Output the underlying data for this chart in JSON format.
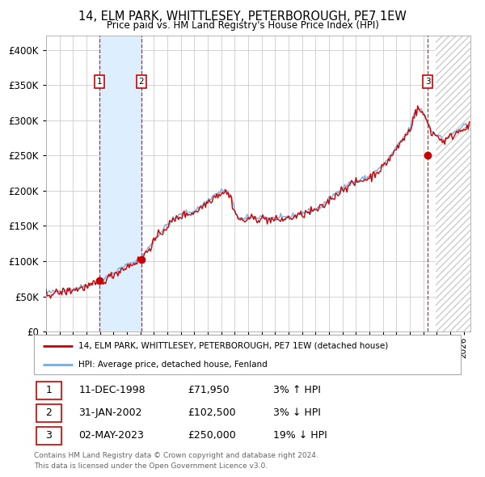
{
  "title": "14, ELM PARK, WHITTLESEY, PETERBOROUGH, PE7 1EW",
  "subtitle": "Price paid vs. HM Land Registry's House Price Index (HPI)",
  "legend_line1": "14, ELM PARK, WHITTLESEY, PETERBOROUGH, PE7 1EW (detached house)",
  "legend_line2": "HPI: Average price, detached house, Fenland",
  "transactions": [
    {
      "num": 1,
      "date": "11-DEC-1998",
      "price": 71950,
      "price_str": "£71,950",
      "pct": "3%",
      "dir": "↑",
      "year": 1998.94
    },
    {
      "num": 2,
      "date": "31-JAN-2002",
      "price": 102500,
      "price_str": "£102,500",
      "pct": "3%",
      "dir": "↓",
      "year": 2002.08
    },
    {
      "num": 3,
      "date": "02-MAY-2023",
      "price": 250000,
      "price_str": "£250,000",
      "pct": "19%",
      "dir": "↓",
      "year": 2023.33
    }
  ],
  "footer_line1": "Contains HM Land Registry data © Crown copyright and database right 2024.",
  "footer_line2": "This data is licensed under the Open Government Licence v3.0.",
  "ylim": [
    0,
    420000
  ],
  "xlim_start": 1995.0,
  "xlim_end": 2026.5,
  "future_start": 2023.92,
  "t1_year": 1998.94,
  "t2_year": 2002.08,
  "t3_year": 2023.33,
  "t1_price": 71950,
  "t2_price": 102500,
  "t3_price": 250000,
  "red_color": "#cc0000",
  "blue_color": "#7aaadd",
  "bg_color": "#ffffff",
  "grid_color": "#cccccc",
  "shade_color": "#ddeeff",
  "hatch_color": "#cccccc"
}
